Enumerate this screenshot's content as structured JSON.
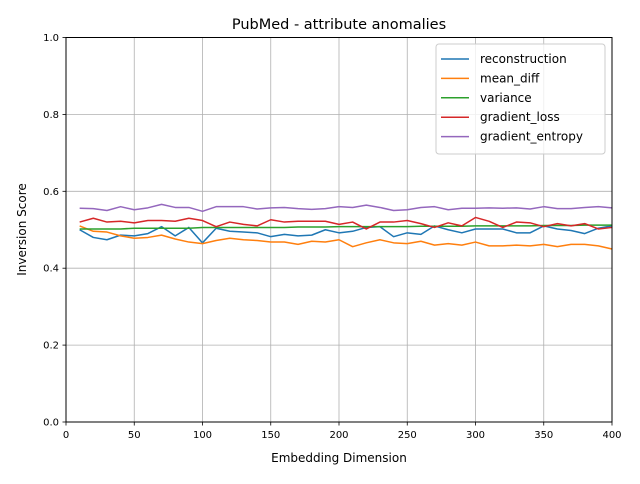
{
  "chart_data": {
    "type": "line",
    "title": "PubMed - attribute anomalies",
    "xlabel": "Embedding Dimension",
    "ylabel": "Inversion Score",
    "xlim": [
      0,
      400
    ],
    "ylim": [
      0.0,
      1.0
    ],
    "xticks": [
      "0",
      "50",
      "100",
      "150",
      "200",
      "250",
      "300",
      "350",
      "400"
    ],
    "yticks": [
      "0.0",
      "0.2",
      "0.4",
      "0.6",
      "0.8",
      "1.0"
    ],
    "xtick_values": [
      0,
      50,
      100,
      150,
      200,
      250,
      300,
      350,
      400
    ],
    "ytick_values": [
      0.0,
      0.2,
      0.4,
      0.6,
      0.8,
      1.0
    ],
    "grid": true,
    "legend_position": "top-right",
    "x": [
      10,
      20,
      30,
      40,
      50,
      60,
      70,
      80,
      90,
      100,
      110,
      120,
      130,
      140,
      150,
      160,
      170,
      180,
      190,
      200,
      210,
      220,
      230,
      240,
      250,
      260,
      270,
      280,
      290,
      300,
      310,
      320,
      330,
      340,
      350,
      360,
      370,
      380,
      390,
      400
    ],
    "series": [
      {
        "name": "reconstruction",
        "color": "#1f77b4",
        "values": [
          0.5,
          0.48,
          0.474,
          0.486,
          0.484,
          0.49,
          0.508,
          0.484,
          0.506,
          0.466,
          0.504,
          0.496,
          0.494,
          0.492,
          0.482,
          0.488,
          0.484,
          0.486,
          0.5,
          0.492,
          0.496,
          0.506,
          0.508,
          0.482,
          0.492,
          0.488,
          0.51,
          0.5,
          0.492,
          0.502,
          0.502,
          0.502,
          0.492,
          0.492,
          0.51,
          0.502,
          0.498,
          0.49,
          0.504,
          0.51
        ]
      },
      {
        "name": "mean_diff",
        "color": "#ff7f0e",
        "values": [
          0.51,
          0.496,
          0.494,
          0.484,
          0.478,
          0.48,
          0.486,
          0.476,
          0.468,
          0.464,
          0.472,
          0.478,
          0.474,
          0.472,
          0.468,
          0.468,
          0.462,
          0.47,
          0.468,
          0.474,
          0.456,
          0.466,
          0.474,
          0.466,
          0.464,
          0.47,
          0.46,
          0.464,
          0.46,
          0.468,
          0.458,
          0.458,
          0.46,
          0.458,
          0.462,
          0.456,
          0.462,
          0.462,
          0.458,
          0.45
        ]
      },
      {
        "name": "variance",
        "color": "#2ca02c",
        "values": [
          0.502,
          0.502,
          0.502,
          0.502,
          0.504,
          0.504,
          0.504,
          0.504,
          0.504,
          0.506,
          0.506,
          0.506,
          0.506,
          0.506,
          0.506,
          0.506,
          0.507,
          0.507,
          0.507,
          0.508,
          0.508,
          0.508,
          0.508,
          0.508,
          0.508,
          0.509,
          0.509,
          0.509,
          0.509,
          0.51,
          0.51,
          0.51,
          0.51,
          0.51,
          0.511,
          0.511,
          0.511,
          0.512,
          0.512,
          0.512
        ]
      },
      {
        "name": "gradient_loss",
        "color": "#d62728",
        "values": [
          0.52,
          0.53,
          0.52,
          0.522,
          0.518,
          0.524,
          0.524,
          0.522,
          0.53,
          0.524,
          0.508,
          0.52,
          0.514,
          0.51,
          0.526,
          0.52,
          0.522,
          0.522,
          0.522,
          0.514,
          0.52,
          0.502,
          0.52,
          0.52,
          0.524,
          0.516,
          0.506,
          0.518,
          0.51,
          0.532,
          0.522,
          0.506,
          0.52,
          0.518,
          0.508,
          0.516,
          0.51,
          0.516,
          0.502,
          0.506
        ]
      },
      {
        "name": "gradient_entropy",
        "color": "#9467bd",
        "values": [
          0.556,
          0.555,
          0.55,
          0.56,
          0.552,
          0.557,
          0.566,
          0.558,
          0.558,
          0.548,
          0.56,
          0.56,
          0.56,
          0.554,
          0.557,
          0.558,
          0.555,
          0.553,
          0.555,
          0.56,
          0.558,
          0.564,
          0.558,
          0.55,
          0.552,
          0.558,
          0.56,
          0.552,
          0.556,
          0.556,
          0.557,
          0.556,
          0.557,
          0.554,
          0.56,
          0.555,
          0.555,
          0.558,
          0.56,
          0.557
        ]
      }
    ]
  }
}
